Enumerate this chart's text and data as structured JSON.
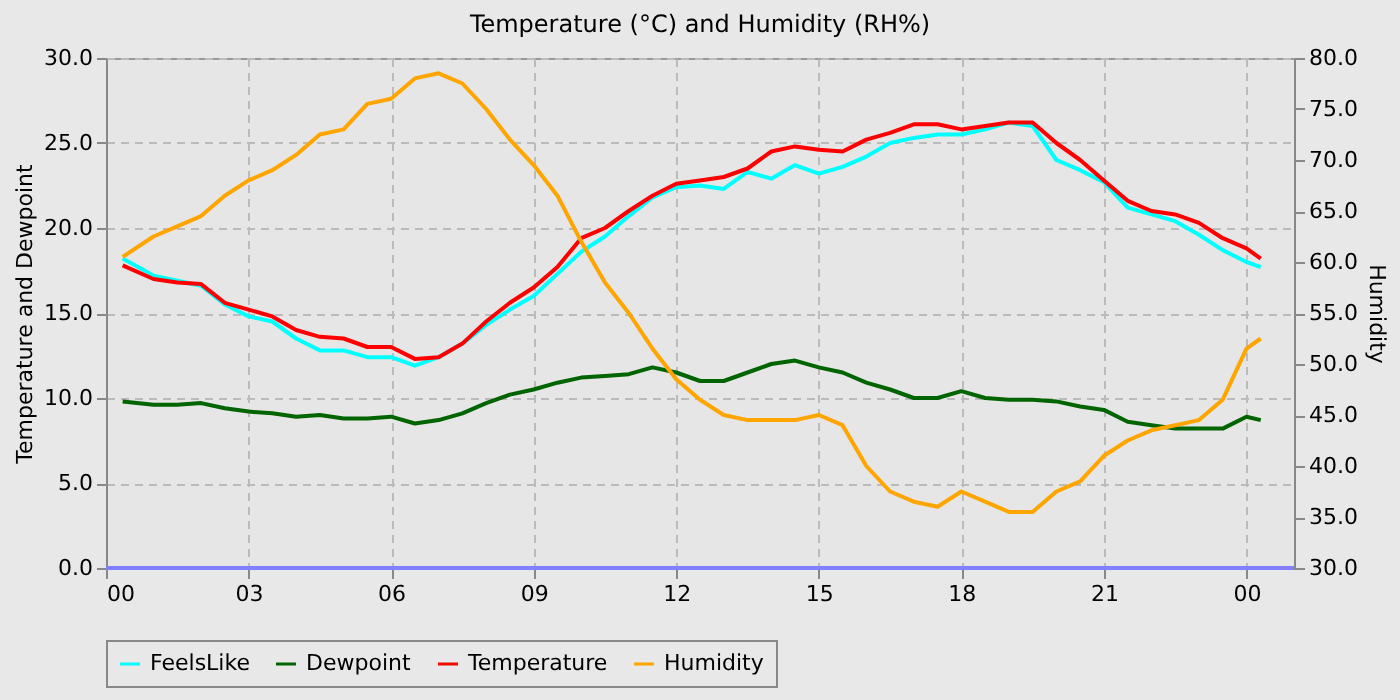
{
  "chart_data": {
    "type": "line",
    "title": "Temperature (°C) and Humidity (RH%)",
    "ylabel": "Temperature and Dewpoint",
    "y2label": "Humidity",
    "x": [
      0.35,
      1,
      1.5,
      2,
      2.5,
      3,
      3.5,
      4,
      4.5,
      5,
      5.5,
      6,
      6.5,
      7,
      7.5,
      8,
      8.5,
      9,
      9.5,
      10,
      10.5,
      11,
      11.5,
      12,
      12.5,
      13,
      13.5,
      14,
      14.5,
      15,
      15.5,
      16,
      16.5,
      17,
      17.5,
      18,
      18.5,
      19,
      19.5,
      20,
      20.5,
      21,
      21.5,
      22,
      22.5,
      23,
      23.5,
      24,
      24.3
    ],
    "series": [
      {
        "name": "FeelsLike",
        "color": "#00ffff",
        "values": [
          18.2,
          17.2,
          16.9,
          16.6,
          15.5,
          14.8,
          14.5,
          13.5,
          12.8,
          12.8,
          12.4,
          12.4,
          11.9,
          12.4,
          13.2,
          14.3,
          15.2,
          16.0,
          17.3,
          18.6,
          19.5,
          20.7,
          21.8,
          22.4,
          22.5,
          22.3,
          23.3,
          22.9,
          23.7,
          23.2,
          23.6,
          24.2,
          25.0,
          25.3,
          25.5,
          25.5,
          25.8,
          26.2,
          26.0,
          24.0,
          23.4,
          22.7,
          21.2,
          20.8,
          20.4,
          19.6,
          18.7,
          18.0,
          17.7
        ]
      },
      {
        "name": "Dewpoint",
        "color": "#006400",
        "values": [
          9.8,
          9.6,
          9.6,
          9.7,
          9.4,
          9.2,
          9.1,
          8.9,
          9.0,
          8.8,
          8.8,
          8.9,
          8.5,
          8.7,
          9.1,
          9.7,
          10.2,
          10.5,
          10.9,
          11.2,
          11.3,
          11.4,
          11.8,
          11.5,
          11.0,
          11.0,
          11.5,
          12.0,
          12.2,
          11.8,
          11.5,
          10.9,
          10.5,
          10.0,
          10.0,
          10.4,
          10.0,
          9.9,
          9.9,
          9.8,
          9.5,
          9.3,
          8.6,
          8.4,
          8.2,
          8.2,
          8.2,
          8.9,
          8.7
        ]
      },
      {
        "name": "Temperature",
        "color": "#ff0000",
        "values": [
          17.8,
          17.0,
          16.8,
          16.7,
          15.6,
          15.2,
          14.8,
          14.0,
          13.6,
          13.5,
          13.0,
          13.0,
          12.3,
          12.4,
          13.2,
          14.5,
          15.6,
          16.5,
          17.7,
          19.4,
          20.0,
          21.0,
          21.9,
          22.6,
          22.8,
          23.0,
          23.5,
          24.5,
          24.8,
          24.6,
          24.5,
          25.2,
          25.6,
          26.1,
          26.1,
          25.8,
          26.0,
          26.2,
          26.2,
          25.0,
          24.0,
          22.8,
          21.6,
          21.0,
          20.8,
          20.3,
          19.4,
          18.8,
          18.2
        ]
      },
      {
        "name": "Humidity",
        "color": "#ffa500",
        "axis": "y2",
        "values": [
          60.5,
          62.5,
          63.5,
          64.5,
          66.5,
          68,
          69,
          70.5,
          72.5,
          73,
          75.5,
          76,
          78,
          78.5,
          77.5,
          75,
          72,
          69.5,
          66.5,
          62,
          58,
          55,
          51.5,
          48.5,
          46.5,
          45,
          44.5,
          44.5,
          44.5,
          45,
          44,
          40,
          37.5,
          36.5,
          36,
          37.5,
          36.5,
          35.5,
          35.5,
          37.5,
          38.5,
          41,
          42.5,
          43.5,
          44,
          44.5,
          46.5,
          51.5,
          52.5
        ]
      }
    ],
    "xlim": [
      0,
      25
    ],
    "xticks": [
      {
        "value": 0,
        "label": "00"
      },
      {
        "value": 3,
        "label": "03"
      },
      {
        "value": 6,
        "label": "06"
      },
      {
        "value": 9,
        "label": "09"
      },
      {
        "value": 12,
        "label": "12"
      },
      {
        "value": 15,
        "label": "15"
      },
      {
        "value": 18,
        "label": "18"
      },
      {
        "value": 21,
        "label": "21"
      },
      {
        "value": 24,
        "label": "00"
      }
    ],
    "ylim": [
      0,
      30
    ],
    "yticks": [
      {
        "value": 0,
        "label": "0.0"
      },
      {
        "value": 5,
        "label": "5.0"
      },
      {
        "value": 10,
        "label": "10.0"
      },
      {
        "value": 15,
        "label": "15.0"
      },
      {
        "value": 20,
        "label": "20.0"
      },
      {
        "value": 25,
        "label": "25.0"
      },
      {
        "value": 30,
        "label": "30.0"
      }
    ],
    "y2lim": [
      30,
      80
    ],
    "y2ticks": [
      {
        "value": 30,
        "label": "30.0"
      },
      {
        "value": 35,
        "label": "35.0"
      },
      {
        "value": 40,
        "label": "40.0"
      },
      {
        "value": 45,
        "label": "45.0"
      },
      {
        "value": 50,
        "label": "50.0"
      },
      {
        "value": 55,
        "label": "55.0"
      },
      {
        "value": 60,
        "label": "60.0"
      },
      {
        "value": 65,
        "label": "65.0"
      },
      {
        "value": 70,
        "label": "70.0"
      },
      {
        "value": 75,
        "label": "75.0"
      },
      {
        "value": 80,
        "label": "80.0"
      }
    ],
    "ref_lines": [
      {
        "axis": "y",
        "value": 0,
        "color": "#8080ff"
      }
    ],
    "grid": true,
    "line_style": "solid",
    "marker": "none",
    "legend": "bottom"
  }
}
